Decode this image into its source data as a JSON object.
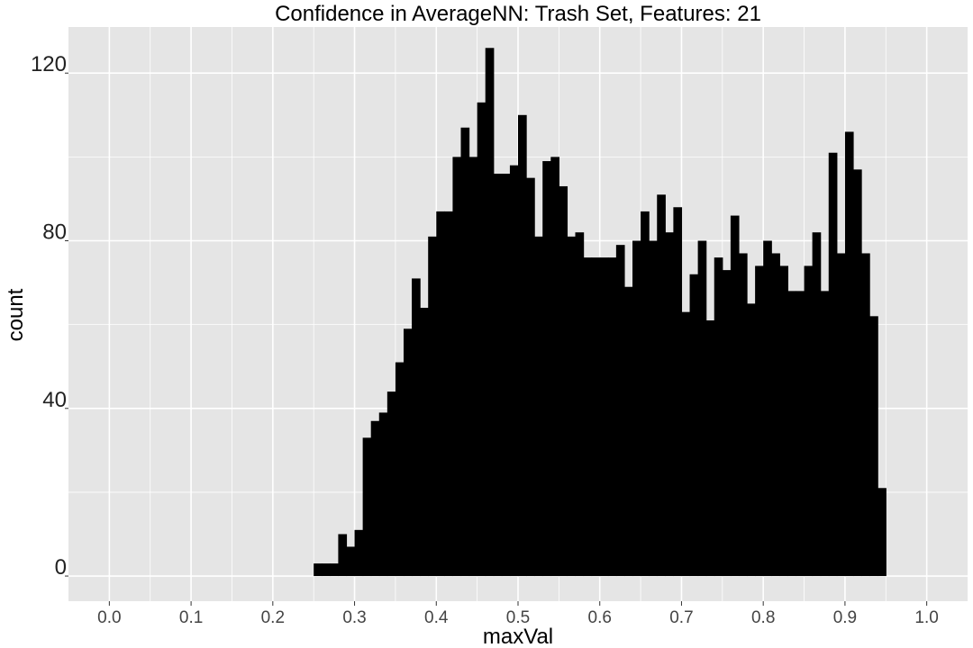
{
  "chart_data": {
    "type": "bar",
    "title": "Confidence in AverageNN: Trash Set, Features: 21",
    "xlabel": "maxVal",
    "ylabel": "count",
    "xlim": [
      -0.05,
      1.05
    ],
    "ylim": [
      -6,
      131
    ],
    "x_ticks": [
      0.0,
      0.1,
      0.2,
      0.3,
      0.4,
      0.5,
      0.6,
      0.7,
      0.8,
      0.9,
      1.0
    ],
    "x_tick_labels": [
      "0.0",
      "0.1",
      "0.2",
      "0.3",
      "0.4",
      "0.5",
      "0.6",
      "0.7",
      "0.8",
      "0.9",
      "1.0"
    ],
    "y_ticks": [
      0,
      40,
      80,
      120
    ],
    "y_tick_labels": [
      "0",
      "40",
      "80",
      "120"
    ],
    "grid": true,
    "bar_color": "#000000",
    "panel_color": "#e5e5e5",
    "grid_color": "#ffffff",
    "bin_width": 0.01,
    "bin_start": 0.25,
    "values": [
      3,
      3,
      3,
      10,
      7,
      11,
      33,
      37,
      39,
      44,
      51,
      59,
      71,
      64,
      81,
      87,
      87,
      100,
      107,
      100,
      113,
      126,
      96,
      96,
      98,
      110,
      95,
      81,
      99,
      100,
      93,
      81,
      82,
      76,
      76,
      76,
      76,
      79,
      69,
      80,
      87,
      80,
      91,
      82,
      88,
      63,
      72,
      80,
      61,
      76,
      73,
      86,
      77,
      65,
      74,
      80,
      77,
      74,
      68,
      68,
      74,
      82,
      68,
      101,
      77,
      106,
      97,
      77,
      62,
      21
    ]
  }
}
